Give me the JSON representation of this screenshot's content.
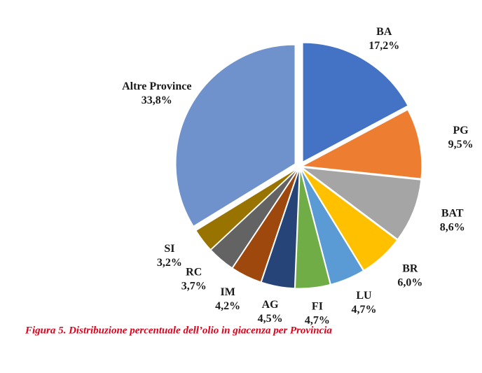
{
  "chart_data": {
    "type": "pie",
    "caption": "Figura 5. Distribuzione percentuale dell’olio in giacenza per Provincia",
    "categories": [
      "BA",
      "PG",
      "BAT",
      "BR",
      "LU",
      "FI",
      "AG",
      "IM",
      "RC",
      "SI",
      "Altre Province"
    ],
    "values": [
      17.2,
      9.5,
      8.6,
      6.0,
      4.7,
      4.7,
      4.5,
      4.2,
      3.7,
      3.2,
      33.8
    ],
    "value_labels": [
      "17,2%",
      "9,5%",
      "8,6%",
      "6,0%",
      "4,7%",
      "4,7%",
      "4,5%",
      "4,2%",
      "3,7%",
      "3,2%",
      "33,8%"
    ],
    "colors": [
      "#4472c4",
      "#ed7d31",
      "#a5a5a5",
      "#ffc000",
      "#5b9bd5",
      "#70ad47",
      "#264478",
      "#9e480e",
      "#636363",
      "#997300",
      "#7092cc"
    ]
  }
}
